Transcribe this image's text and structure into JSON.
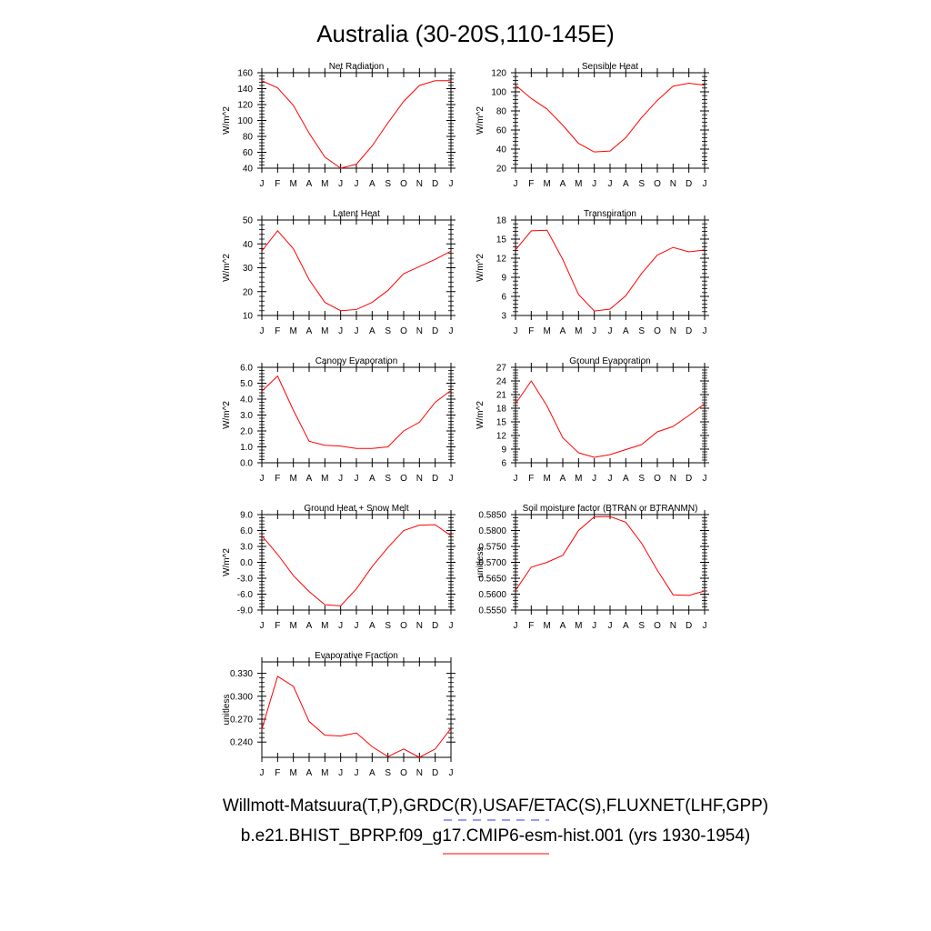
{
  "figure": {
    "title": "Australia (30-20S,110-145E)",
    "legend": [
      {
        "label": "Willmott-Matsuura(T,P),GRDC(R),USAF/ETAC(S),FLUXNET(LHF,GPP)",
        "color": "#3333ff",
        "line_style": "dashed"
      },
      {
        "label": "b.e21.BHIST_BPRP.f09_g17.CMIP6-esm-hist.001 (yrs 1930-1954)",
        "color": "#ff0000",
        "line_style": "solid"
      }
    ],
    "line_color": "#ff0000"
  },
  "chart_data": [
    {
      "type": "line",
      "title": "Net Radiation",
      "ylabel": "W/m^2",
      "categories": [
        "J",
        "F",
        "M",
        "A",
        "M",
        "J",
        "J",
        "A",
        "S",
        "O",
        "N",
        "D",
        "J"
      ],
      "yticks": [
        40,
        60,
        80,
        100,
        120,
        140,
        160
      ],
      "tick_format": "0",
      "ylim": [
        40,
        160
      ],
      "series": [
        {
          "values": [
            150,
            141,
            119,
            84,
            54,
            40,
            45,
            68,
            97,
            124,
            144,
            150,
            150
          ]
        }
      ]
    },
    {
      "type": "line",
      "title": "Sensible Heat",
      "ylabel": "W/m^2",
      "categories": [
        "J",
        "F",
        "M",
        "A",
        "M",
        "J",
        "J",
        "A",
        "S",
        "O",
        "N",
        "D",
        "J"
      ],
      "yticks": [
        20,
        40,
        60,
        80,
        100,
        120
      ],
      "tick_format": "0",
      "ylim": [
        20,
        120
      ],
      "series": [
        {
          "values": [
            107,
            93,
            82,
            65,
            46,
            37,
            38,
            52,
            73,
            91,
            106,
            109,
            107
          ]
        }
      ]
    },
    {
      "type": "line",
      "title": "Latent Heat",
      "ylabel": "W/m^2",
      "categories": [
        "J",
        "F",
        "M",
        "A",
        "M",
        "J",
        "J",
        "A",
        "S",
        "O",
        "N",
        "D",
        "J"
      ],
      "yticks": [
        10,
        20,
        30,
        40,
        50
      ],
      "tick_format": "0",
      "ylim": [
        10,
        50
      ],
      "series": [
        {
          "values": [
            37,
            45.5,
            38,
            25,
            15.5,
            12,
            12.5,
            15.5,
            20.5,
            27.5,
            30.5,
            33.5,
            37
          ]
        }
      ]
    },
    {
      "type": "line",
      "title": "Transpiration",
      "ylabel": "W/m^2",
      "categories": [
        "J",
        "F",
        "M",
        "A",
        "M",
        "J",
        "J",
        "A",
        "S",
        "O",
        "N",
        "D",
        "J"
      ],
      "yticks": [
        3,
        6,
        9,
        12,
        15,
        18
      ],
      "tick_format": "0",
      "ylim": [
        3,
        18
      ],
      "series": [
        {
          "values": [
            13.3,
            16.3,
            16.4,
            11.8,
            6.3,
            3.7,
            4.0,
            6.1,
            9.6,
            12.5,
            13.7,
            13.0,
            13.3
          ]
        }
      ]
    },
    {
      "type": "line",
      "title": "Canopy Evaporation",
      "ylabel": "W/m^2",
      "categories": [
        "J",
        "F",
        "M",
        "A",
        "M",
        "J",
        "J",
        "A",
        "S",
        "O",
        "N",
        "D",
        "J"
      ],
      "yticks": [
        0,
        1,
        2,
        3,
        4,
        5,
        6
      ],
      "tick_format": "0.0",
      "ylim": [
        0,
        6
      ],
      "series": [
        {
          "values": [
            4.5,
            5.45,
            3.3,
            1.35,
            1.1,
            1.05,
            0.9,
            0.9,
            1.0,
            2.0,
            2.55,
            3.8,
            4.55
          ]
        }
      ]
    },
    {
      "type": "line",
      "title": "Ground Evaporation",
      "ylabel": "W/m^2",
      "categories": [
        "J",
        "F",
        "M",
        "A",
        "M",
        "J",
        "J",
        "A",
        "S",
        "O",
        "N",
        "D",
        "J"
      ],
      "yticks": [
        6,
        9,
        12,
        15,
        18,
        21,
        24,
        27
      ],
      "tick_format": "0",
      "ylim": [
        6,
        27
      ],
      "series": [
        {
          "values": [
            19,
            24,
            18.5,
            11.5,
            8.2,
            7.2,
            7.8,
            8.9,
            10.0,
            12.8,
            14.0,
            16.4,
            19
          ]
        }
      ]
    },
    {
      "type": "line",
      "title": "Ground Heat + Snow Melt",
      "ylabel": "W/m^2",
      "categories": [
        "J",
        "F",
        "M",
        "A",
        "M",
        "J",
        "J",
        "A",
        "S",
        "O",
        "N",
        "D",
        "J"
      ],
      "yticks": [
        -9,
        -6,
        -3,
        0,
        3,
        6,
        9
      ],
      "tick_format": "0.0",
      "ylim": [
        -9,
        9
      ],
      "series": [
        {
          "values": [
            5,
            1.5,
            -2.5,
            -5.5,
            -8,
            -8.2,
            -5,
            -0.8,
            2.8,
            6,
            7,
            7.1,
            5
          ]
        }
      ]
    },
    {
      "type": "line",
      "title": "Soil moisture factor (BTRAN or BTRANMN)",
      "ylabel": "unitless",
      "categories": [
        "J",
        "F",
        "M",
        "A",
        "M",
        "J",
        "J",
        "A",
        "S",
        "O",
        "N",
        "D",
        "J"
      ],
      "yticks": [
        0.555,
        0.56,
        0.565,
        0.57,
        0.575,
        0.58,
        0.585
      ],
      "tick_format": "0.0000",
      "ylim": [
        0.555,
        0.585
      ],
      "series": [
        {
          "values": [
            0.5612,
            0.5685,
            0.57,
            0.5722,
            0.58,
            0.5843,
            0.5844,
            0.5826,
            0.576,
            0.5675,
            0.5598,
            0.5596,
            0.561
          ]
        }
      ]
    },
    {
      "type": "line",
      "title": "Evaporative Fraction",
      "ylabel": "unitless",
      "categories": [
        "J",
        "F",
        "M",
        "A",
        "M",
        "J",
        "J",
        "A",
        "S",
        "O",
        "N",
        "D",
        "J"
      ],
      "yticks": [
        0.24,
        0.27,
        0.3,
        0.33
      ],
      "tick_format": "0.000",
      "ylim": [
        0.22,
        0.345
      ],
      "series": [
        {
          "values": [
            0.257,
            0.326,
            0.313,
            0.267,
            0.249,
            0.248,
            0.252,
            0.234,
            0.221,
            0.231,
            0.22,
            0.231,
            0.258
          ]
        }
      ]
    }
  ]
}
